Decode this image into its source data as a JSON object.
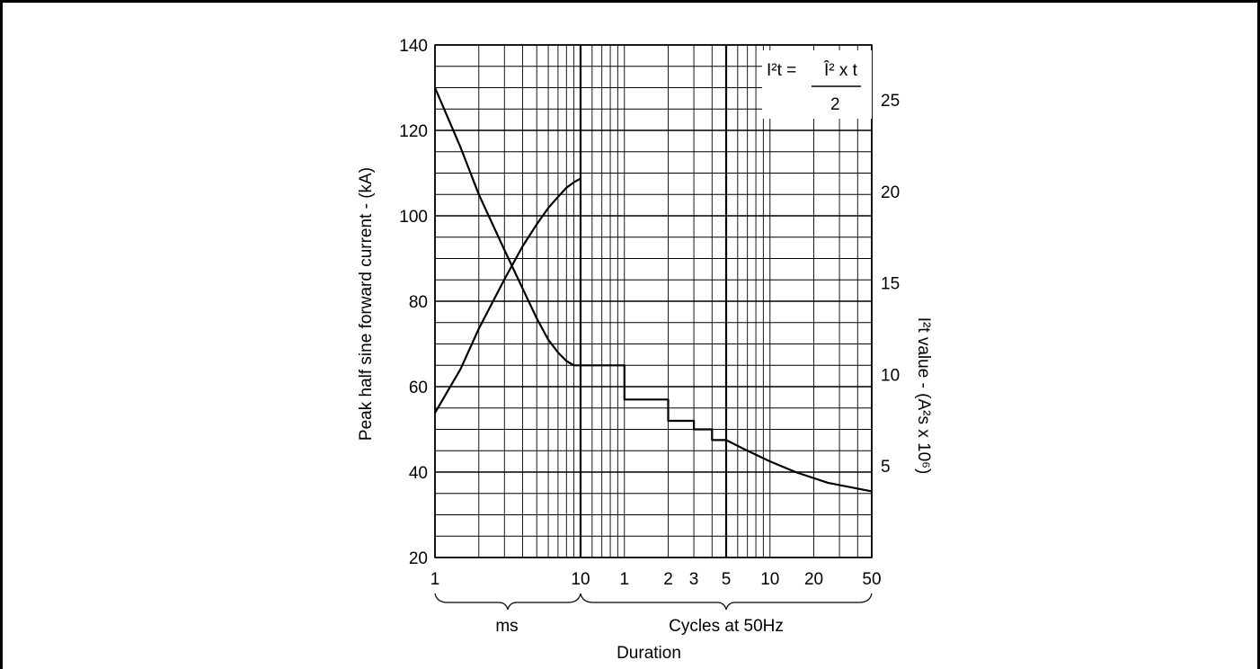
{
  "chart_data": {
    "type": "line",
    "title": "",
    "xlabel": "Duration",
    "ylabel": "Peak half sine forward current - (kA)",
    "y2label": "I²t value - (A²s x 10⁶)",
    "ylim": [
      20,
      140
    ],
    "y2lim": [
      0,
      28
    ],
    "grid": true,
    "y_ticks": [
      "20",
      "40",
      "60",
      "80",
      "100",
      "120",
      "140"
    ],
    "y2_ticks": [
      "5",
      "10",
      "15",
      "20",
      "25"
    ],
    "x_sections": [
      {
        "name": "ms",
        "scale": "log",
        "range": [
          1,
          10
        ],
        "ticks": [
          "1",
          "10"
        ]
      },
      {
        "name": "Cycles at 50Hz",
        "scale": "log",
        "range": [
          0.5,
          50
        ],
        "ticks": [
          "1",
          "2",
          "3",
          "5",
          "10",
          "20",
          "50"
        ]
      }
    ],
    "formula": {
      "lhs": "I²t =",
      "numerator": "Î² x t",
      "denominator": "2"
    },
    "series": [
      {
        "section": "ms",
        "axis": "left",
        "x": [
          1,
          1.5,
          2,
          3,
          4,
          5,
          6,
          7,
          8,
          9,
          10
        ],
        "y": [
          130,
          116,
          105,
          92,
          83,
          76,
          71,
          68,
          66,
          65,
          65
        ]
      },
      {
        "section": "ms",
        "axis": "right",
        "x": [
          1,
          1.5,
          2,
          3,
          4,
          5,
          6,
          7,
          8,
          9,
          10
        ],
        "y": [
          7.9,
          10.3,
          12.5,
          15.2,
          17.0,
          18.2,
          19.1,
          19.7,
          20.2,
          20.5,
          20.7
        ]
      },
      {
        "section": "Cycles at 50Hz",
        "axis": "left",
        "x": [
          0.5,
          1,
          1,
          2,
          2,
          3,
          3,
          4,
          4,
          5,
          7,
          10,
          15,
          25,
          50
        ],
        "y": [
          65,
          65,
          57,
          57,
          52,
          52,
          50,
          50,
          47.5,
          47.5,
          45,
          42.5,
          40,
          37.5,
          35.5
        ]
      }
    ]
  }
}
